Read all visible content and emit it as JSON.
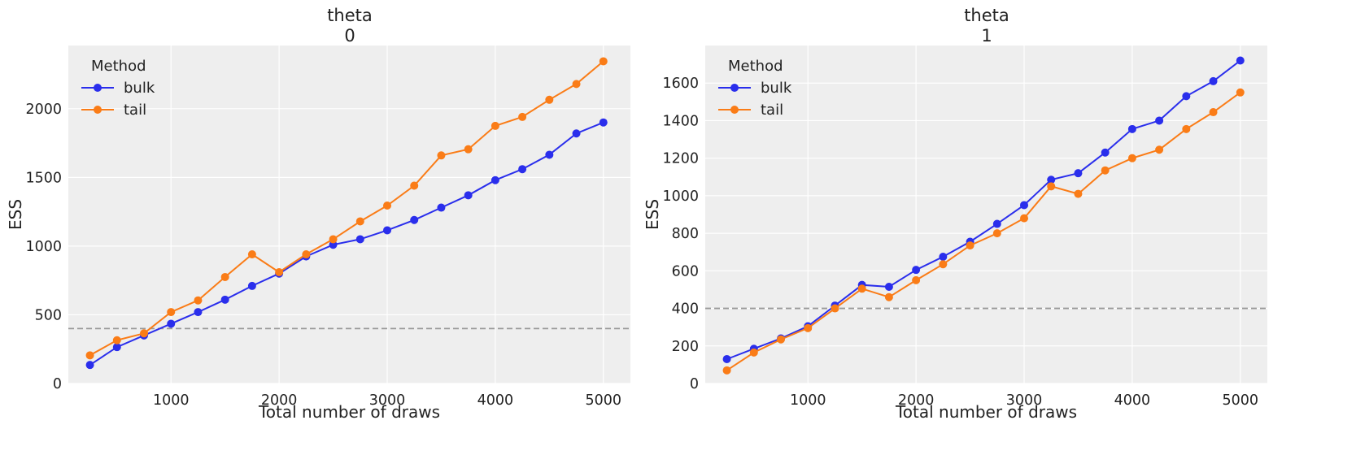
{
  "chart_data": [
    {
      "type": "line",
      "title": "theta",
      "subtitle": "0",
      "xlabel": "Total number of draws",
      "ylabel": "ESS",
      "xlim": [
        50,
        5250
      ],
      "ylim": [
        0,
        2460
      ],
      "xticks": [
        1000,
        2000,
        3000,
        4000,
        5000
      ],
      "yticks": [
        0,
        500,
        1000,
        1500,
        2000
      ],
      "grid": true,
      "legend": {
        "title": "Method",
        "placement": "top-left"
      },
      "reference_line": 400,
      "x": [
        250,
        500,
        750,
        1000,
        1250,
        1500,
        1750,
        2000,
        2250,
        2500,
        2750,
        3000,
        3250,
        3500,
        3750,
        4000,
        4250,
        4500,
        4750,
        5000
      ],
      "series": [
        {
          "name": "bulk",
          "color": "#2a2eec",
          "values": [
            135,
            265,
            350,
            435,
            520,
            610,
            710,
            800,
            925,
            1010,
            1050,
            1115,
            1190,
            1280,
            1370,
            1480,
            1560,
            1665,
            1820,
            1900
          ]
        },
        {
          "name": "tail",
          "color": "#fa7c17",
          "values": [
            205,
            315,
            365,
            520,
            605,
            775,
            940,
            810,
            940,
            1050,
            1180,
            1295,
            1440,
            1660,
            1705,
            1875,
            1940,
            2065,
            2180,
            2345
          ]
        }
      ]
    },
    {
      "type": "line",
      "title": "theta",
      "subtitle": "1",
      "xlabel": "Total number of draws",
      "ylabel": "ESS",
      "xlim": [
        50,
        5250
      ],
      "ylim": [
        0,
        1800
      ],
      "xticks": [
        1000,
        2000,
        3000,
        4000,
        5000
      ],
      "yticks": [
        0,
        200,
        400,
        600,
        800,
        1000,
        1200,
        1400,
        1600
      ],
      "grid": true,
      "legend": {
        "title": "Method",
        "placement": "top-left"
      },
      "reference_line": 400,
      "x": [
        250,
        500,
        750,
        1000,
        1250,
        1500,
        1750,
        2000,
        2250,
        2500,
        2750,
        3000,
        3250,
        3500,
        3750,
        4000,
        4250,
        4500,
        4750,
        5000
      ],
      "series": [
        {
          "name": "bulk",
          "color": "#2a2eec",
          "values": [
            130,
            185,
            240,
            305,
            415,
            525,
            515,
            605,
            675,
            755,
            850,
            950,
            1085,
            1120,
            1230,
            1355,
            1400,
            1530,
            1610,
            1720
          ]
        },
        {
          "name": "tail",
          "color": "#fa7c17",
          "values": [
            70,
            165,
            235,
            295,
            400,
            505,
            460,
            550,
            635,
            735,
            800,
            880,
            1050,
            1010,
            1135,
            1200,
            1245,
            1355,
            1445,
            1550
          ]
        }
      ]
    }
  ]
}
